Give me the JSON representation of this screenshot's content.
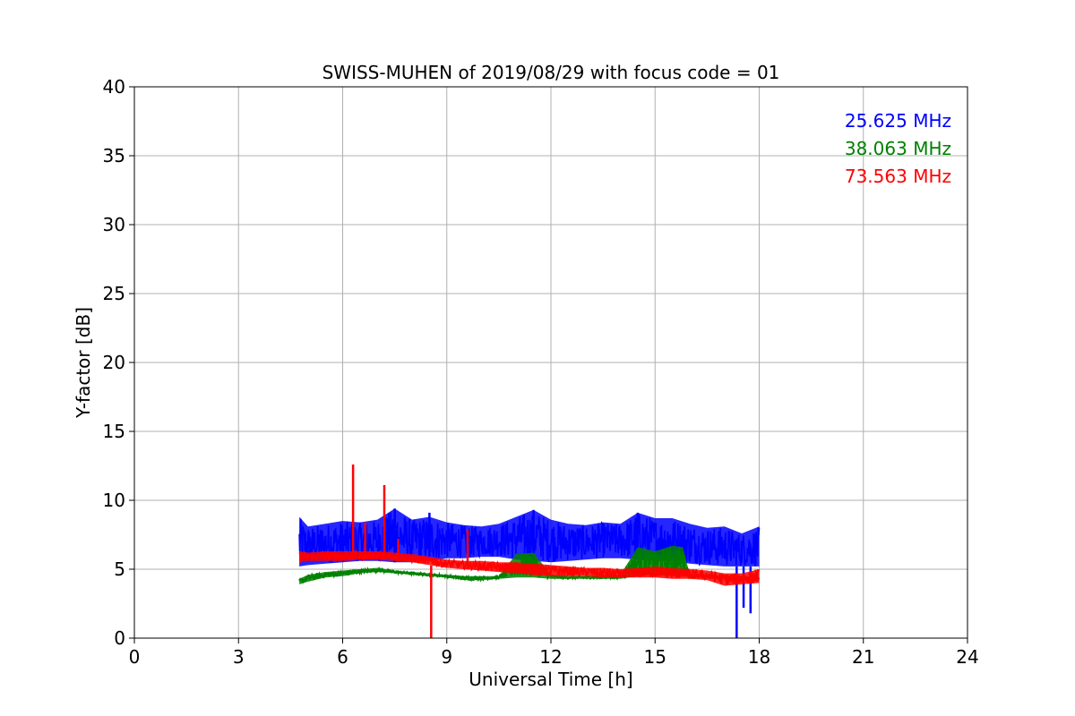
{
  "chart_data": {
    "type": "line",
    "title": "SWISS-MUHEN of 2019/08/29 with focus code = 01",
    "xlabel": "Universal Time [h]",
    "ylabel": "Y-factor [dB]",
    "xlim": [
      0,
      24
    ],
    "ylim": [
      0,
      40
    ],
    "xticks": [
      0,
      3,
      6,
      9,
      12,
      15,
      18,
      21,
      24
    ],
    "yticks": [
      0,
      5,
      10,
      15,
      20,
      25,
      30,
      35,
      40
    ],
    "grid": true,
    "legend_placement": "top-right",
    "series": [
      {
        "name": "25.625 MHz",
        "color": "#0000ff",
        "band": true,
        "x": [
          4.75,
          5.0,
          5.5,
          6.0,
          6.5,
          7.0,
          7.5,
          8.0,
          8.5,
          9.0,
          9.5,
          10.0,
          10.5,
          11.0,
          11.5,
          12.0,
          12.5,
          13.0,
          13.5,
          14.0,
          14.5,
          15.0,
          15.5,
          16.0,
          16.5,
          17.0,
          17.5,
          18.0
        ],
        "low": [
          5.2,
          5.3,
          5.4,
          5.5,
          5.6,
          5.6,
          5.5,
          5.5,
          5.6,
          5.8,
          5.8,
          5.9,
          5.9,
          5.7,
          5.6,
          5.5,
          5.6,
          5.7,
          5.8,
          5.8,
          5.7,
          5.6,
          5.6,
          5.4,
          5.3,
          5.2,
          5.2,
          5.2
        ],
        "high": [
          8.8,
          8.1,
          8.3,
          8.5,
          8.4,
          8.6,
          9.4,
          8.6,
          8.8,
          8.4,
          8.2,
          8.1,
          8.3,
          8.8,
          9.3,
          8.6,
          8.3,
          8.2,
          8.4,
          8.3,
          9.1,
          8.7,
          8.7,
          8.3,
          8.0,
          8.1,
          7.6,
          8.1
        ],
        "spikes": [
          {
            "x": 7.5,
            "y": 9.4
          },
          {
            "x": 8.5,
            "y": 9.1
          },
          {
            "x": 11.5,
            "y": 9.3
          },
          {
            "x": 14.5,
            "y": 9.1
          },
          {
            "x": 17.35,
            "y": 0.0
          },
          {
            "x": 17.55,
            "y": 2.2
          },
          {
            "x": 17.75,
            "y": 1.8
          }
        ]
      },
      {
        "name": "38.063 MHz",
        "color": "#008000",
        "band": true,
        "x": [
          4.75,
          5.0,
          5.5,
          6.0,
          6.5,
          7.0,
          7.5,
          8.0,
          8.5,
          9.0,
          9.5,
          10.0,
          10.5,
          11.0,
          11.5,
          12.0,
          12.5,
          13.0,
          13.5,
          14.0,
          14.5,
          15.0,
          15.5,
          15.8,
          16.0,
          16.5,
          17.0,
          17.5,
          18.0
        ],
        "low": [
          3.9,
          4.1,
          4.4,
          4.5,
          4.7,
          4.8,
          4.7,
          4.6,
          4.5,
          4.4,
          4.2,
          4.2,
          4.3,
          4.4,
          4.4,
          4.3,
          4.3,
          4.3,
          4.3,
          4.3,
          4.5,
          4.6,
          4.5,
          4.5,
          4.4,
          4.4,
          4.3,
          4.2,
          4.2
        ],
        "high": [
          4.3,
          4.6,
          4.8,
          4.9,
          5.0,
          5.1,
          4.9,
          4.8,
          4.7,
          4.6,
          4.5,
          4.5,
          4.5,
          6.1,
          6.2,
          4.6,
          4.5,
          4.5,
          4.6,
          4.6,
          6.6,
          6.3,
          6.7,
          6.6,
          4.6,
          4.6,
          4.5,
          4.5,
          4.4
        ],
        "spikes": []
      },
      {
        "name": "73.563 MHz",
        "color": "#ff0000",
        "band": true,
        "x": [
          4.75,
          5.0,
          5.5,
          6.0,
          6.5,
          7.0,
          7.5,
          8.0,
          8.5,
          9.0,
          9.5,
          10.0,
          10.5,
          11.0,
          11.5,
          12.0,
          12.5,
          13.0,
          13.5,
          14.0,
          14.5,
          15.0,
          15.5,
          16.0,
          16.5,
          17.0,
          17.5,
          18.0
        ],
        "low": [
          5.5,
          5.6,
          5.6,
          5.6,
          5.7,
          5.7,
          5.6,
          5.5,
          5.3,
          5.1,
          5.0,
          4.9,
          4.8,
          4.7,
          4.6,
          4.5,
          4.5,
          4.5,
          4.4,
          4.4,
          4.4,
          4.4,
          4.3,
          4.3,
          4.2,
          3.8,
          3.9,
          4.0
        ],
        "high": [
          6.3,
          6.2,
          6.3,
          6.3,
          6.3,
          6.3,
          6.2,
          6.1,
          5.9,
          5.7,
          5.6,
          5.6,
          5.5,
          5.5,
          5.4,
          5.3,
          5.2,
          5.1,
          5.1,
          5.0,
          5.1,
          5.2,
          5.1,
          5.0,
          4.9,
          4.7,
          4.7,
          5.0
        ],
        "spikes": [
          {
            "x": 6.3,
            "y": 12.6
          },
          {
            "x": 6.65,
            "y": 8.4
          },
          {
            "x": 7.2,
            "y": 11.1
          },
          {
            "x": 7.6,
            "y": 7.2
          },
          {
            "x": 8.55,
            "y": 0.0
          },
          {
            "x": 9.6,
            "y": 7.9
          }
        ]
      }
    ]
  }
}
